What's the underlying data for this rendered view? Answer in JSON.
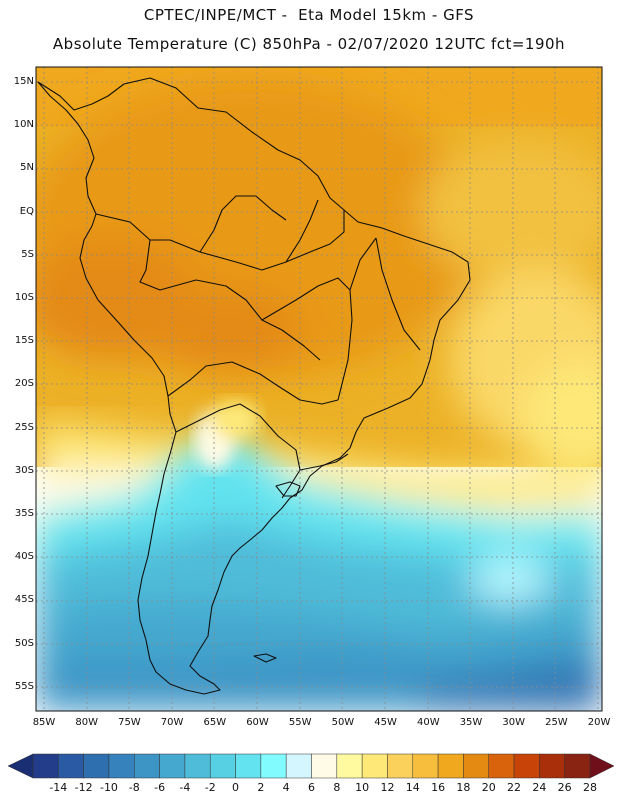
{
  "header": {
    "title_line1": "CPTEC/INPE/MCT -  Eta Model 15km - GFS",
    "title_line2": "Absolute Temperature (C) 850hPa - 02/07/2020 12UTC fct=190h"
  },
  "map": {
    "lat_labels": [
      "15N",
      "10N",
      "5N",
      "EQ",
      "5S",
      "10S",
      "15S",
      "20S",
      "25S",
      "30S",
      "35S",
      "40S",
      "45S",
      "50S",
      "55S"
    ],
    "lon_labels": [
      "85W",
      "80W",
      "75W",
      "70W",
      "65W",
      "60W",
      "55W",
      "50W",
      "45W",
      "40W",
      "35W",
      "30W",
      "25W",
      "20W"
    ]
  },
  "colorbar": {
    "labels": [
      "-14",
      "-12",
      "-10",
      "-8",
      "-6",
      "-4",
      "-2",
      "0",
      "2",
      "4",
      "6",
      "8",
      "10",
      "12",
      "14",
      "16",
      "18",
      "20",
      "22",
      "24",
      "26",
      "28"
    ],
    "colors": [
      "#243d8a",
      "#2a5aa3",
      "#2e6fb0",
      "#3582bd",
      "#3d95c6",
      "#45a8cf",
      "#4fbcd9",
      "#58d0e3",
      "#62e3ef",
      "#82fbff",
      "#d4f6ff",
      "#fffbe6",
      "#fff9a0",
      "#fde878",
      "#fbd15c",
      "#f7bd3d",
      "#f0a81e",
      "#e48a12",
      "#d8630c",
      "#c84308",
      "#a82f0a",
      "#8a2412"
    ],
    "low_end": "#1a2e73",
    "high_end": "#6e0f1a"
  }
}
